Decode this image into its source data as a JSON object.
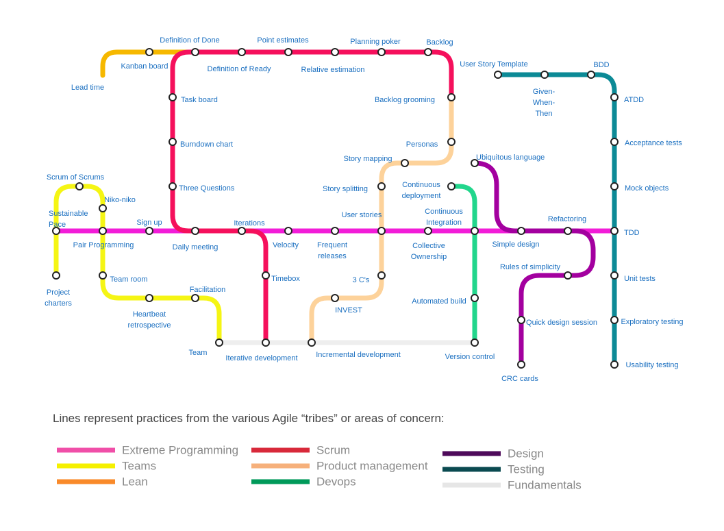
{
  "nodes": [
    "Lead time",
    "Kanban board",
    "Definition of Done",
    "Definition of Ready",
    "Point estimates",
    "Relative estimation",
    "Planning poker",
    "Backlog",
    "User Story Template",
    [
      "Given-",
      "When-",
      "Then"
    ],
    "BDD",
    "Backlog grooming",
    "Task board",
    "ATDD",
    "Burndown chart",
    "Personas",
    "Acceptance tests",
    "Story mapping",
    "Ubiquitous language",
    "Scrum of Scrums",
    "Three Questions",
    "Story splitting",
    [
      "Continuous",
      "deployment"
    ],
    "Mock objects",
    "Niko-niko",
    [
      "Sustainable",
      "Pace"
    ],
    "Sign up",
    "Iterations",
    "User stories",
    [
      "Continuous",
      "Integration"
    ],
    "Refactoring",
    "TDD",
    "Pair Programming",
    "Daily meeting",
    "Velocity",
    [
      "Frequent",
      "releases"
    ],
    [
      "Collective",
      "Ownership"
    ],
    "Simple design",
    "Rules of simplicity",
    [
      "Project",
      "charters"
    ],
    "Team room",
    "Timebox",
    "3 C's",
    "Unit tests",
    "Facilitation",
    [
      "Heartbeat",
      "retrospective"
    ],
    "Automated build",
    "INVEST",
    "Quick design session",
    "Exploratory testing",
    "Team",
    "Iterative development",
    "Incremental development",
    "Version control",
    "CRC cards",
    "Usability testing"
  ],
  "caption": "Lines represent practices from the various Agile “tribes” or areas of concern:",
  "legend": [
    {
      "label": "Extreme Programming",
      "color": "#f04fa8"
    },
    {
      "label": "Teams",
      "color": "#f5f000"
    },
    {
      "label": "Lean",
      "color": "#f98a2a"
    },
    {
      "label": "Scrum",
      "color": "#d8293a"
    },
    {
      "label": "Product management",
      "color": "#f6b07b"
    },
    {
      "label": "Devops",
      "color": "#009a5a"
    },
    {
      "label": "Design",
      "color": "#4e0a5a"
    },
    {
      "label": "Testing",
      "color": "#0a4a50"
    },
    {
      "label": "Fundamentals",
      "color": "#e6e6e6"
    }
  ]
}
